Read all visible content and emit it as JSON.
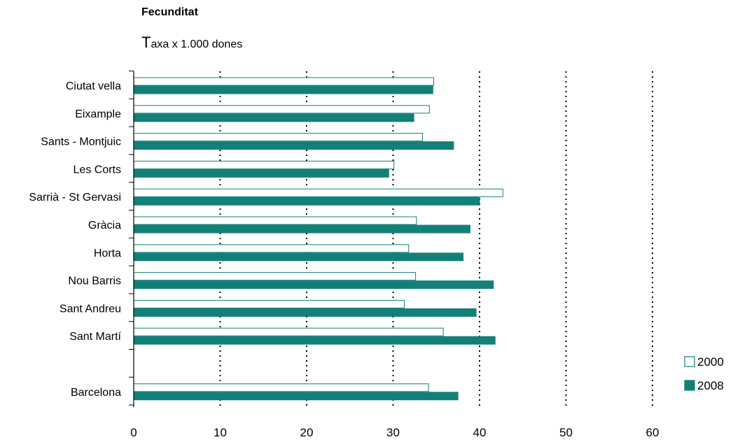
{
  "chart_data": {
    "type": "bar",
    "orientation": "horizontal",
    "title": "Fecunditat",
    "subtitle": "Taxa x 1.000 dones",
    "categories": [
      "Ciutat vella",
      "Eixample",
      "Sants - Montjuic",
      "Les Corts",
      "Sarrià - St Gervasi",
      "Gràcia",
      "Horta",
      "Nou Barris",
      "Sant Andreu",
      "Sant Martí",
      "",
      "Barcelona"
    ],
    "series": [
      {
        "name": "2000",
        "values": [
          34.7,
          34.2,
          33.4,
          30.1,
          42.7,
          32.7,
          31.8,
          32.6,
          31.3,
          35.8,
          null,
          34.1
        ],
        "color": "#ffffff",
        "stroke": "#138078"
      },
      {
        "name": "2008",
        "values": [
          34.6,
          32.4,
          37.0,
          29.5,
          40.0,
          38.9,
          38.1,
          41.6,
          39.6,
          41.8,
          null,
          37.5
        ],
        "color": "#138078",
        "stroke": "#138078"
      }
    ],
    "xlim": [
      0,
      60
    ],
    "xticks": [
      "0",
      "10",
      "20",
      "30",
      "40",
      "50",
      "60"
    ],
    "grid": true,
    "legend_position": "bottom-right"
  }
}
